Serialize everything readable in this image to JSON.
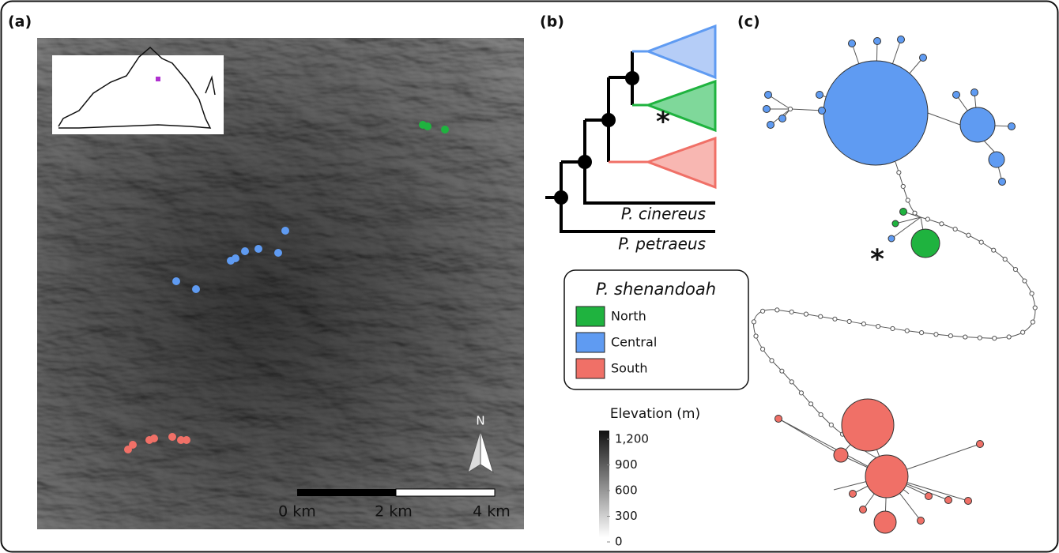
{
  "panels": {
    "a": {
      "label": "(a)",
      "north": "N",
      "scale_bar": [
        "0 km",
        "2 km",
        "4 km"
      ]
    },
    "b": {
      "label": "(b)",
      "taxa": [
        "P. cinereus",
        "P. petraeus"
      ],
      "asterisk": "*",
      "legend": {
        "title": "P. shenandoah",
        "items": [
          {
            "name": "North",
            "color": "#1fb33f"
          },
          {
            "name": "Central",
            "color": "#5f9bf2"
          },
          {
            "name": "South",
            "color": "#f07067"
          }
        ]
      },
      "elevation": {
        "title": "Elevation (m)",
        "ticks": [
          "1,200",
          "900",
          "600",
          "300",
          "0"
        ]
      }
    },
    "c": {
      "label": "(c)",
      "asterisk": "*"
    }
  }
}
